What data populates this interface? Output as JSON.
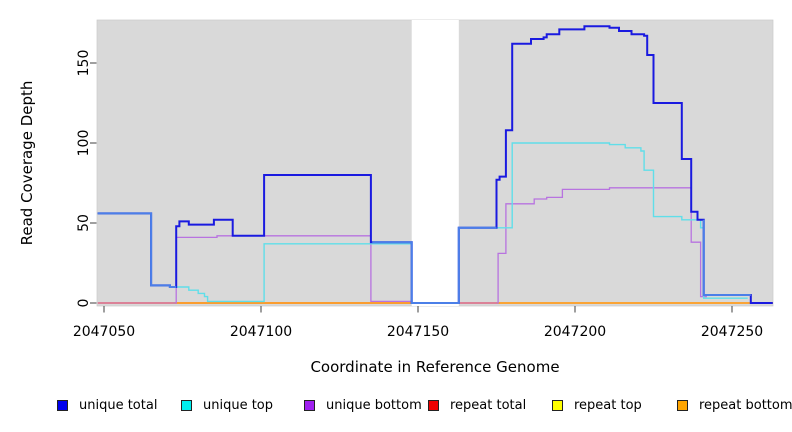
{
  "axes": {
    "x": {
      "title": "Coordinate in Reference Genome",
      "tick_labels": [
        "2047050",
        "2047100",
        "2047150",
        "2047200",
        "2047250"
      ]
    },
    "y": {
      "title": "Read Coverage Depth",
      "tick_labels": [
        "0",
        "50",
        "100",
        "150"
      ]
    }
  },
  "legend": {
    "items": [
      {
        "label": "unique total",
        "color": "#0000EE"
      },
      {
        "label": "unique top",
        "color": "#00EEEE"
      },
      {
        "label": "unique bottom",
        "color": "#A020F0"
      },
      {
        "label": "repeat total",
        "color": "#EE0000"
      },
      {
        "label": "repeat top",
        "color": "#FFFF00"
      },
      {
        "label": "repeat bottom",
        "color": "#FFA500"
      }
    ]
  },
  "colors": {
    "panel_background": "#D9D9D9",
    "masked_band": "#FFFFFF",
    "tick": "#3F3F3F",
    "text": "#000000"
  },
  "chart_data": {
    "type": "line",
    "style": "step",
    "title": "",
    "xlabel": "Coordinate in Reference Genome",
    "ylabel": "Read Coverage Depth",
    "xlim": [
      2047048,
      2047263
    ],
    "ylim": [
      0,
      177
    ],
    "x_ticks": [
      2047050,
      2047100,
      2047150,
      2047200,
      2047250
    ],
    "y_ticks": [
      0,
      50,
      100,
      150
    ],
    "grid": false,
    "legend_position": "bottom",
    "masked_region": {
      "x_start": 2047148,
      "x_end": 2047163,
      "note": "white vertical band across plot; only unique total (depth 0) crosses it"
    },
    "series": [
      {
        "name": "unique total",
        "line_color": "#1A1AE0",
        "overlap_color": "#4B7FE8",
        "width": 2,
        "segments": [
          {
            "points": [
              [
                2047048,
                56
              ],
              [
                2047065,
                11
              ],
              [
                2047071,
                10
              ],
              [
                2047073,
                48
              ],
              [
                2047074,
                51
              ],
              [
                2047077,
                49
              ],
              [
                2047085,
                52
              ],
              [
                2047091,
                42
              ],
              [
                2047101,
                80
              ],
              [
                2047135,
                38
              ],
              [
                2047148,
                0
              ],
              [
                2047163,
                47
              ],
              [
                2047175,
                77
              ],
              [
                2047176,
                79
              ],
              [
                2047178,
                108
              ],
              [
                2047180,
                162
              ],
              [
                2047186,
                165
              ],
              [
                2047190,
                166
              ],
              [
                2047191,
                168
              ],
              [
                2047195,
                171
              ],
              [
                2047203,
                173
              ],
              [
                2047211,
                172
              ],
              [
                2047214,
                170
              ],
              [
                2047218,
                168
              ],
              [
                2047222,
                167
              ],
              [
                2047223,
                155
              ],
              [
                2047225,
                125
              ],
              [
                2047234,
                90
              ],
              [
                2047237,
                57
              ],
              [
                2047239,
                52
              ],
              [
                2047241,
                5
              ],
              [
                2047256,
                0
              ]
            ],
            "end": 2047263
          }
        ],
        "bright_ranges": [
          [
            2047048,
            2047073
          ],
          [
            2047135.4,
            2047175
          ],
          [
            2047241,
            2047256
          ]
        ]
      },
      {
        "name": "unique top",
        "line_color": "#60DEE9",
        "width": 1.4,
        "segments": [
          {
            "points": [
              [
                2047048,
                56
              ],
              [
                2047065,
                11
              ],
              [
                2047071,
                10
              ],
              [
                2047077,
                8
              ],
              [
                2047080,
                6
              ],
              [
                2047082,
                4
              ],
              [
                2047083,
                1
              ],
              [
                2047101,
                37
              ],
              [
                2047148,
                0
              ],
              [
                2047163,
                47
              ],
              [
                2047180,
                100
              ],
              [
                2047211,
                99
              ],
              [
                2047216,
                97
              ],
              [
                2047221,
                95
              ],
              [
                2047222,
                83
              ],
              [
                2047225,
                54
              ],
              [
                2047234,
                52
              ],
              [
                2047240,
                47
              ],
              [
                2047241,
                3
              ]
            ],
            "end": 2047255
          }
        ]
      },
      {
        "name": "unique bottom",
        "line_color": "#B873E0",
        "width": 1.3,
        "segments": [
          {
            "points": [
              [
                2047072,
                0
              ],
              [
                2047073,
                41
              ],
              [
                2047086,
                42
              ],
              [
                2047135,
                1
              ]
            ],
            "end": 2047148
          },
          {
            "points": [
              [
                2047175,
                0
              ],
              [
                2047175.5,
                31
              ],
              [
                2047178,
                62
              ],
              [
                2047187,
                65
              ],
              [
                2047191,
                66
              ],
              [
                2047196,
                71
              ],
              [
                2047211,
                72
              ],
              [
                2047237,
                38
              ],
              [
                2047240,
                4
              ]
            ],
            "end": 2047242
          }
        ]
      },
      {
        "name": "repeat total",
        "line_color": "#DC6583",
        "width": 1.4,
        "segments": [
          {
            "points": [
              [
                2047048,
                0
              ]
            ],
            "end": 2047148
          },
          {
            "points": [
              [
                2047163,
                0
              ]
            ],
            "end": 2047176
          }
        ]
      },
      {
        "name": "repeat top",
        "line_color": "#F2E400",
        "width": 1,
        "segments": [
          {
            "points": [
              [
                2047072,
                0
              ]
            ],
            "end": 2047148
          },
          {
            "points": [
              [
                2047175,
                0
              ]
            ],
            "end": 2047263
          }
        ]
      },
      {
        "name": "repeat bottom",
        "line_color": "#FF9D1E",
        "width": 1.8,
        "segments": [
          {
            "points": [
              [
                2047072,
                0
              ]
            ],
            "end": 2047148
          },
          {
            "points": [
              [
                2047175,
                0
              ]
            ],
            "end": 2047263
          }
        ]
      }
    ]
  }
}
